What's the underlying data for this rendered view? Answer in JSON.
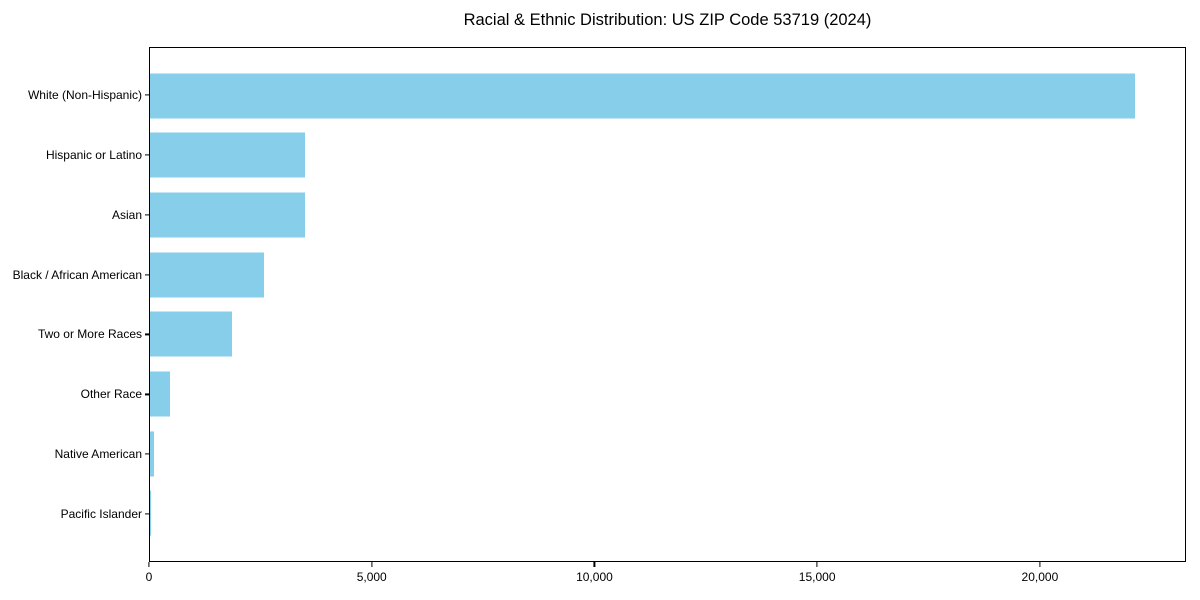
{
  "chart_data": {
    "type": "bar",
    "orientation": "horizontal",
    "title": "Racial & Ethnic Distribution: US ZIP Code 53719 (2024)",
    "categories": [
      "White (Non-Hispanic)",
      "Hispanic or Latino",
      "Asian",
      "Black / African American",
      "Two or More Races",
      "Other Race",
      "Native American",
      "Pacific Islander"
    ],
    "values": [
      22150,
      3490,
      3480,
      2560,
      1840,
      450,
      90,
      15
    ],
    "xlabel": "",
    "ylabel": "",
    "xlim": [
      0,
      23280
    ],
    "xticks": [
      0,
      5000,
      10000,
      15000,
      20000
    ],
    "xtick_labels": [
      "0",
      "5,000",
      "10,000",
      "15,000",
      "20,000"
    ],
    "bar_color": "#87CEEB",
    "text_color": "#000000",
    "grid": false,
    "legend": null,
    "plot_border": true
  }
}
